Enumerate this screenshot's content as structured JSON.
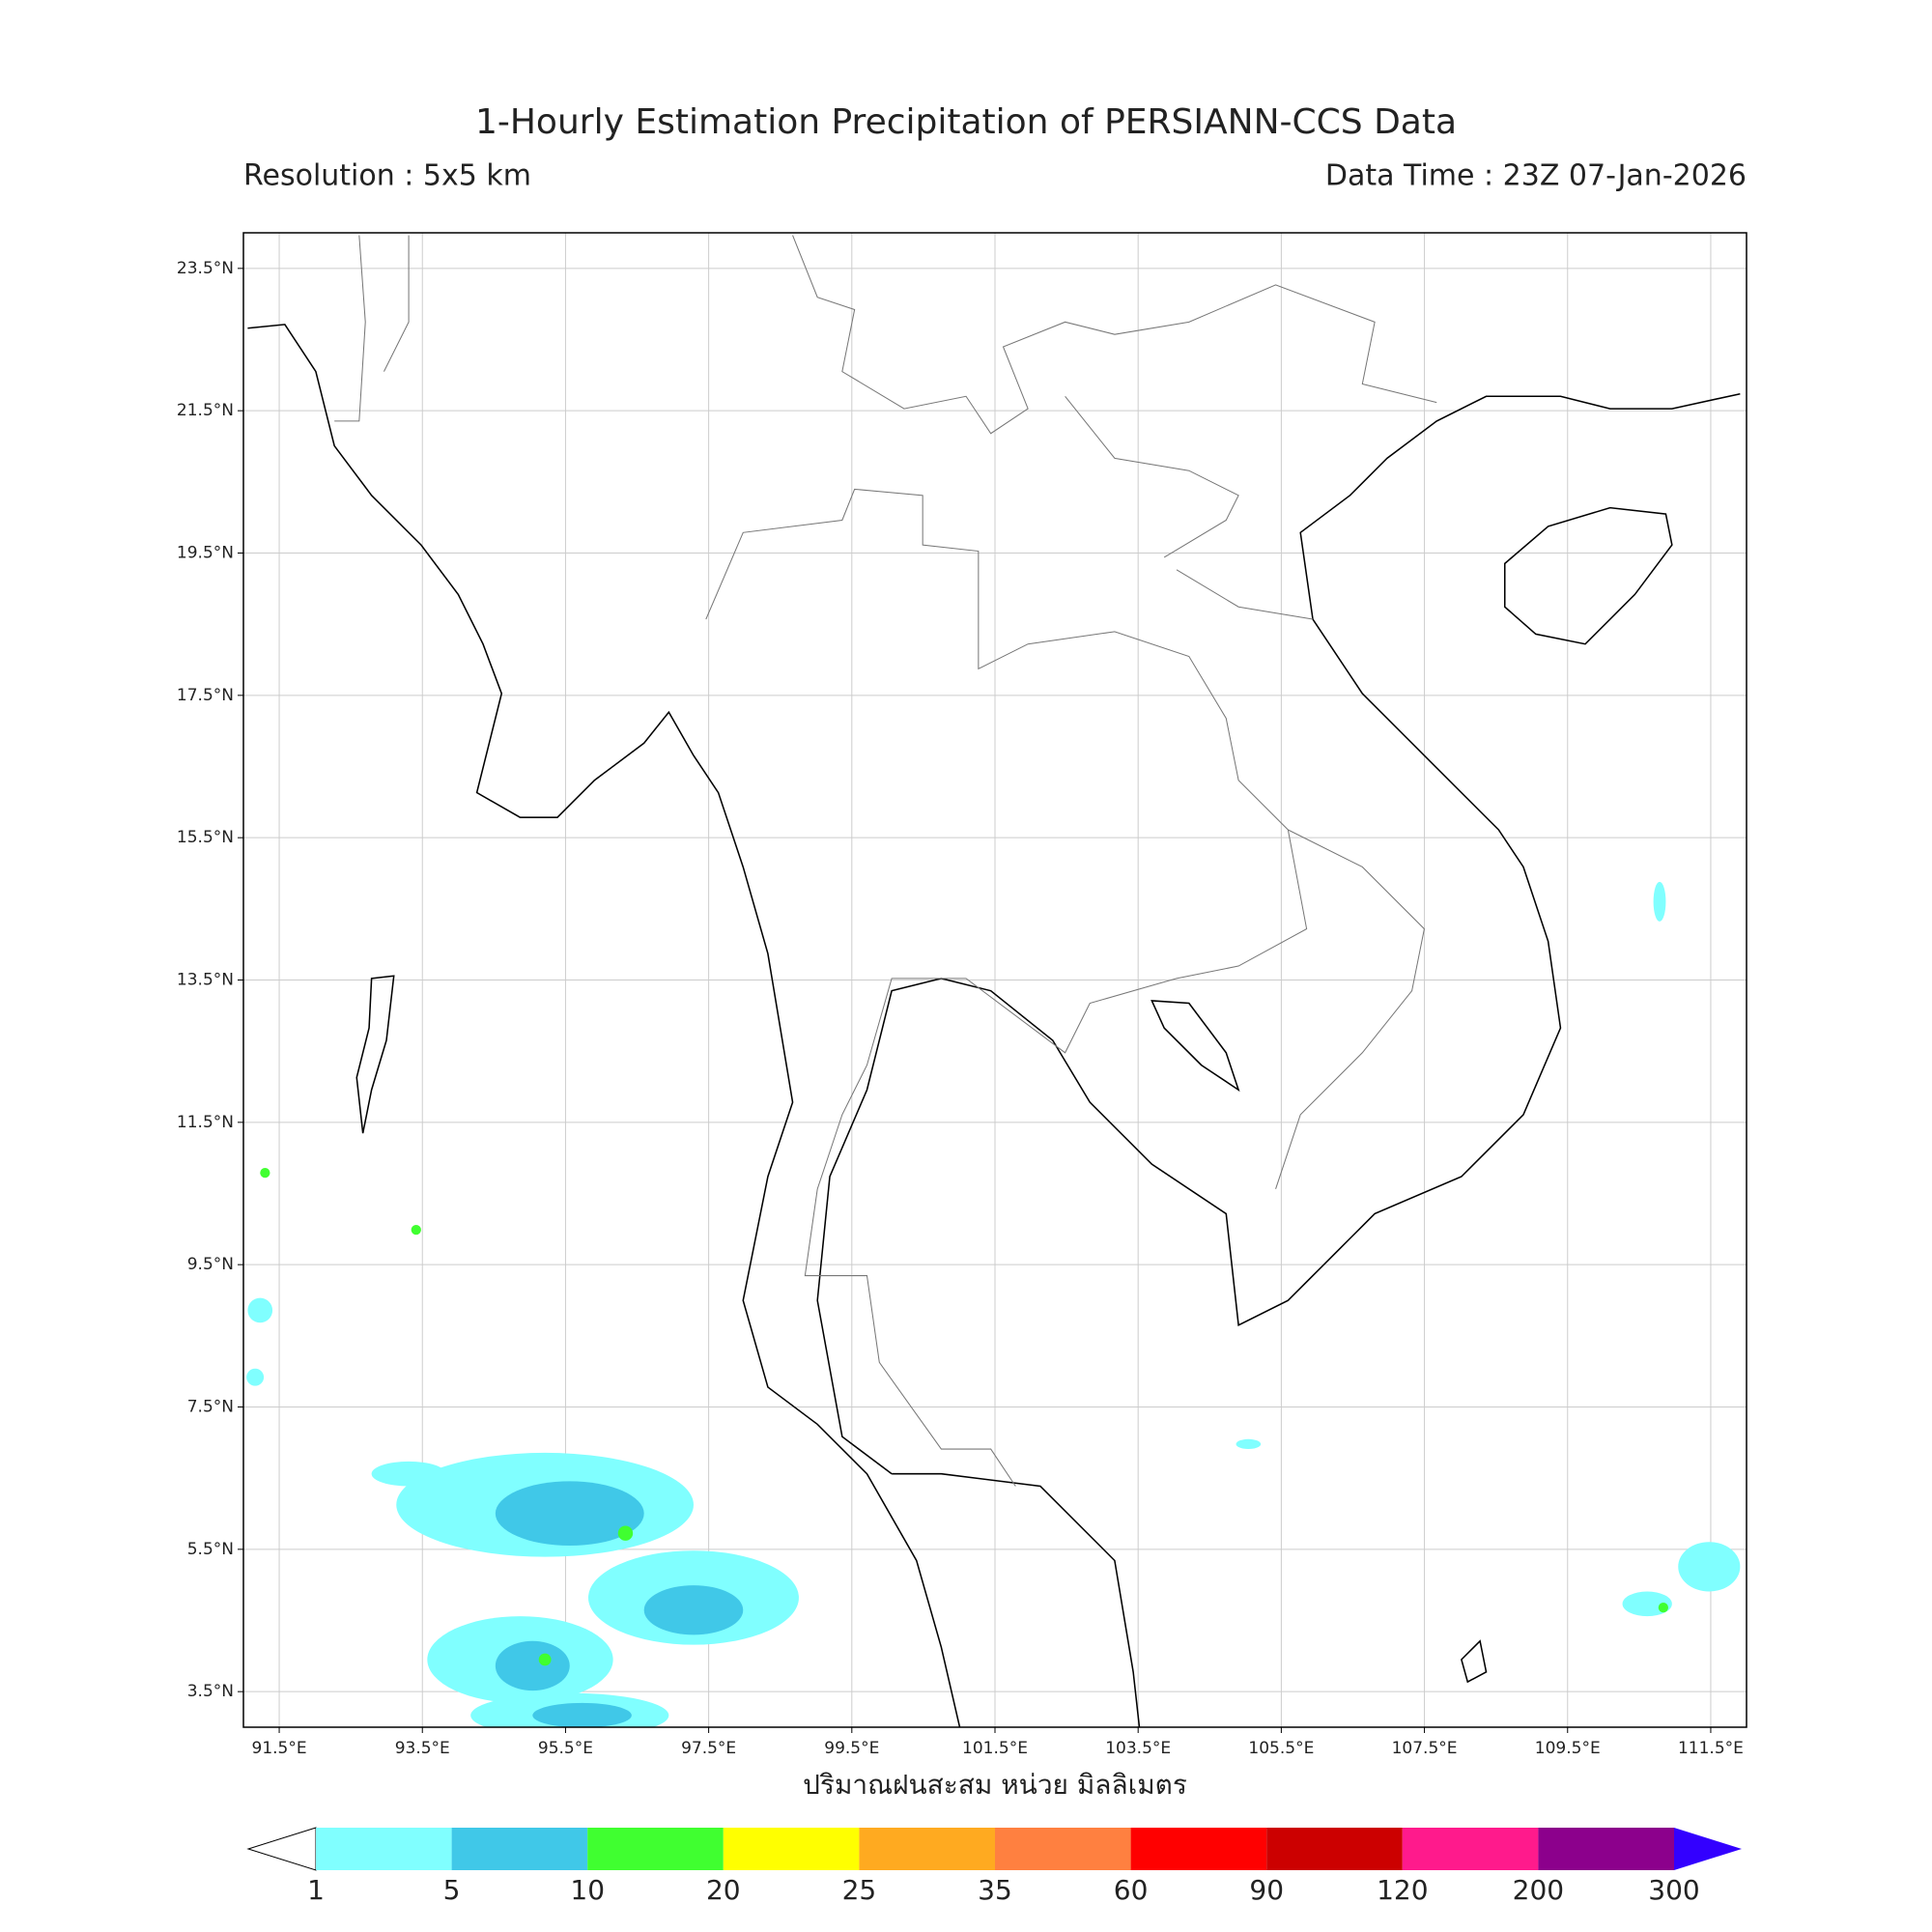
{
  "title": "1-Hourly Estimation Precipitation of PERSIANN-CCS Data",
  "subtitle_left": "Resolution : 5x5 km",
  "subtitle_right": "Data Time : 23Z 07-Jan-2026",
  "map": {
    "xlim": [
      91,
      112
    ],
    "ylim": [
      3,
      24
    ],
    "xticks": [
      {
        "value": 91.5,
        "label": "91.5°E"
      },
      {
        "value": 93.5,
        "label": "93.5°E"
      },
      {
        "value": 95.5,
        "label": "95.5°E"
      },
      {
        "value": 97.5,
        "label": "97.5°E"
      },
      {
        "value": 99.5,
        "label": "99.5°E"
      },
      {
        "value": 101.5,
        "label": "101.5°E"
      },
      {
        "value": 103.5,
        "label": "103.5°E"
      },
      {
        "value": 105.5,
        "label": "105.5°E"
      },
      {
        "value": 107.5,
        "label": "107.5°E"
      },
      {
        "value": 109.5,
        "label": "109.5°E"
      },
      {
        "value": 111.5,
        "label": "111.5°E"
      }
    ],
    "yticks": [
      {
        "value": 23.5,
        "label": "23.5°N"
      },
      {
        "value": 21.5,
        "label": "21.5°N"
      },
      {
        "value": 19.5,
        "label": "19.5°N"
      },
      {
        "value": 17.5,
        "label": "17.5°N"
      },
      {
        "value": 15.5,
        "label": "15.5°N"
      },
      {
        "value": 13.5,
        "label": "13.5°N"
      },
      {
        "value": 11.5,
        "label": "11.5°N"
      },
      {
        "value": 9.5,
        "label": "9.5°N"
      },
      {
        "value": 7.5,
        "label": "7.5°N"
      },
      {
        "value": 5.5,
        "label": "5.5°N"
      },
      {
        "value": 3.5,
        "label": "3.5°N"
      }
    ],
    "grid": true
  },
  "colorbar": {
    "label": "ปริมาณฝนสะสม หน่วย มิลลิเมตร",
    "levels": [
      1,
      5,
      10,
      20,
      25,
      35,
      60,
      90,
      120,
      200,
      300
    ],
    "colors": [
      "#80ffff",
      "#40c8e8",
      "#40ff30",
      "#ffff00",
      "#ffaa20",
      "#ff8040",
      "#ff0000",
      "#cc0000",
      "#ff1a8c",
      "#8c008c"
    ],
    "over_color": "#3300ff"
  }
}
